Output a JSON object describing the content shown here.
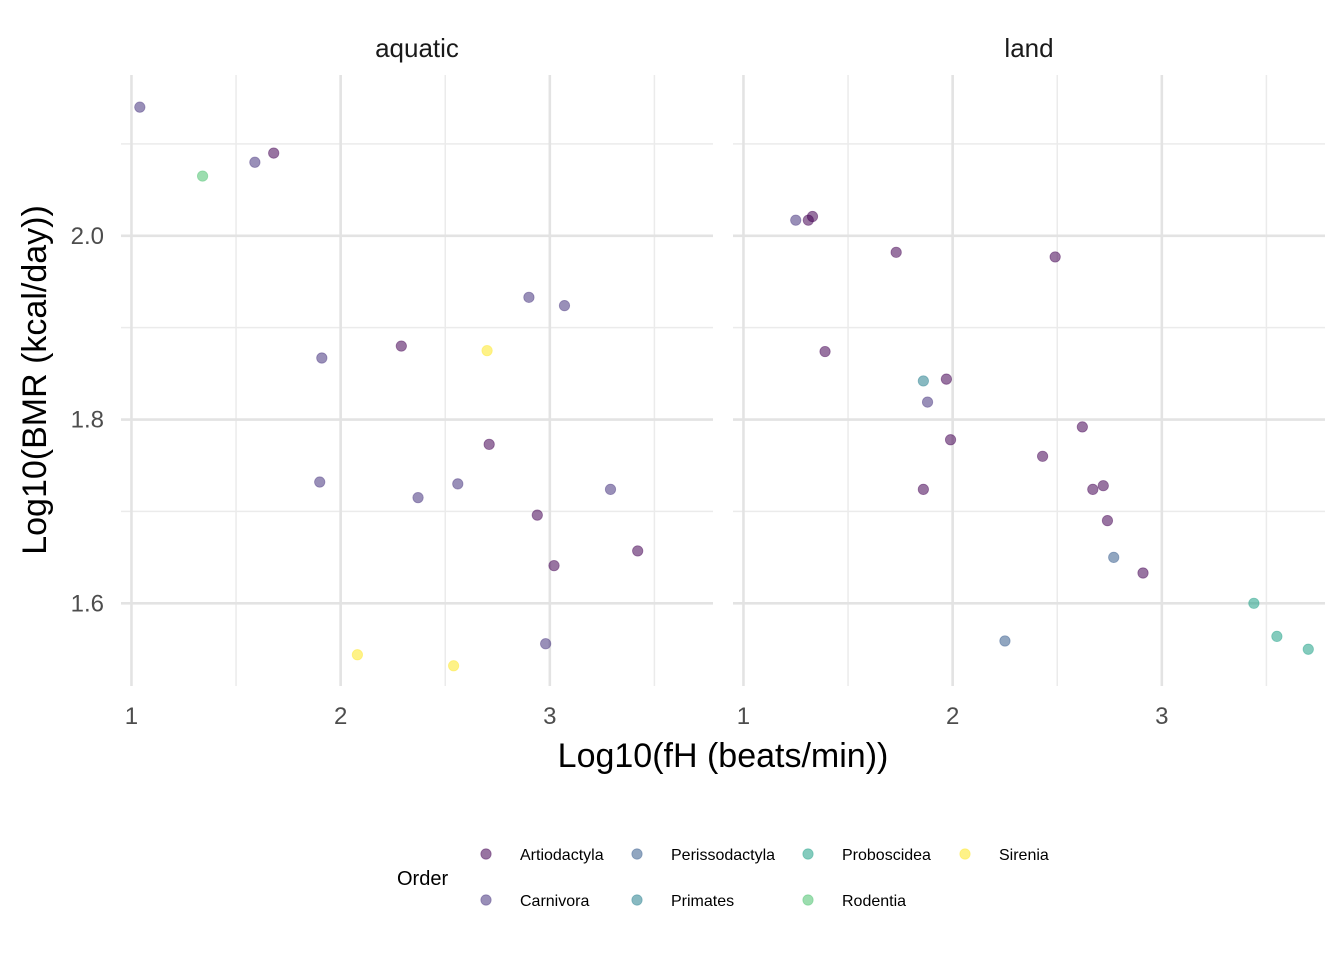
{
  "chart_data": {
    "type": "scatter",
    "xlabel": "Log10(fH (beats/min))",
    "ylabel": "Log10(BMR (kcal/day))",
    "xlim": [
      0.95,
      3.78
    ],
    "ylim": [
      1.51,
      2.175
    ],
    "x_ticks": [
      "1",
      "2",
      "3"
    ],
    "y_ticks": [
      "1.6",
      "1.8",
      "2.0"
    ],
    "grid": true,
    "facets": [
      "aquatic",
      "land"
    ],
    "legend": {
      "title": "Order",
      "placement": "bottom",
      "entries": [
        {
          "name": "Artiodactyla",
          "color": "#440154"
        },
        {
          "name": "Carnivora",
          "color": "#46337E"
        },
        {
          "name": "Perissodactyla",
          "color": "#365C8D"
        },
        {
          "name": "Primates",
          "color": "#277F8E"
        },
        {
          "name": "Proboscidea",
          "color": "#1FA187"
        },
        {
          "name": "Rodentia",
          "color": "#4AC16D"
        },
        {
          "name": "Sirenia",
          "color": "#FDE725"
        }
      ]
    },
    "series": [
      {
        "facet": "aquatic",
        "points": [
          {
            "x": 1.04,
            "y": 2.14,
            "order": "Carnivora"
          },
          {
            "x": 1.34,
            "y": 2.065,
            "order": "Rodentia"
          },
          {
            "x": 1.59,
            "y": 2.08,
            "order": "Carnivora"
          },
          {
            "x": 1.68,
            "y": 2.09,
            "order": "Artiodactyla"
          },
          {
            "x": 1.91,
            "y": 1.867,
            "order": "Carnivora"
          },
          {
            "x": 1.9,
            "y": 1.732,
            "order": "Carnivora"
          },
          {
            "x": 2.08,
            "y": 1.544,
            "order": "Sirenia"
          },
          {
            "x": 2.29,
            "y": 1.88,
            "order": "Artiodactyla"
          },
          {
            "x": 2.37,
            "y": 1.715,
            "order": "Carnivora"
          },
          {
            "x": 2.54,
            "y": 1.532,
            "order": "Sirenia"
          },
          {
            "x": 2.56,
            "y": 1.73,
            "order": "Carnivora"
          },
          {
            "x": 2.7,
            "y": 1.875,
            "order": "Sirenia"
          },
          {
            "x": 2.71,
            "y": 1.773,
            "order": "Artiodactyla"
          },
          {
            "x": 2.9,
            "y": 1.933,
            "order": "Carnivora"
          },
          {
            "x": 2.94,
            "y": 1.696,
            "order": "Artiodactyla"
          },
          {
            "x": 2.98,
            "y": 1.556,
            "order": "Carnivora"
          },
          {
            "x": 3.02,
            "y": 1.641,
            "order": "Artiodactyla"
          },
          {
            "x": 3.07,
            "y": 1.924,
            "order": "Carnivora"
          },
          {
            "x": 3.29,
            "y": 1.724,
            "order": "Carnivora"
          },
          {
            "x": 3.42,
            "y": 1.657,
            "order": "Artiodactyla"
          }
        ]
      },
      {
        "facet": "land",
        "points": [
          {
            "x": 1.25,
            "y": 2.017,
            "order": "Carnivora"
          },
          {
            "x": 1.31,
            "y": 2.017,
            "order": "Artiodactyla"
          },
          {
            "x": 1.33,
            "y": 2.021,
            "order": "Artiodactyla"
          },
          {
            "x": 1.39,
            "y": 1.874,
            "order": "Artiodactyla"
          },
          {
            "x": 1.73,
            "y": 1.982,
            "order": "Artiodactyla"
          },
          {
            "x": 1.86,
            "y": 1.842,
            "order": "Primates"
          },
          {
            "x": 1.86,
            "y": 1.724,
            "order": "Artiodactyla"
          },
          {
            "x": 1.88,
            "y": 1.819,
            "order": "Carnivora"
          },
          {
            "x": 1.97,
            "y": 1.844,
            "order": "Artiodactyla"
          },
          {
            "x": 1.99,
            "y": 1.778,
            "order": "Artiodactyla"
          },
          {
            "x": 2.25,
            "y": 1.559,
            "order": "Perissodactyla"
          },
          {
            "x": 2.43,
            "y": 1.76,
            "order": "Artiodactyla"
          },
          {
            "x": 2.49,
            "y": 1.977,
            "order": "Artiodactyla"
          },
          {
            "x": 2.62,
            "y": 1.792,
            "order": "Artiodactyla"
          },
          {
            "x": 2.67,
            "y": 1.724,
            "order": "Artiodactyla"
          },
          {
            "x": 2.72,
            "y": 1.728,
            "order": "Artiodactyla"
          },
          {
            "x": 2.74,
            "y": 1.69,
            "order": "Artiodactyla"
          },
          {
            "x": 2.77,
            "y": 1.65,
            "order": "Perissodactyla"
          },
          {
            "x": 2.91,
            "y": 1.633,
            "order": "Artiodactyla"
          },
          {
            "x": 3.44,
            "y": 1.6,
            "order": "Proboscidea"
          },
          {
            "x": 3.55,
            "y": 1.564,
            "order": "Proboscidea"
          },
          {
            "x": 3.7,
            "y": 1.55,
            "order": "Proboscidea"
          }
        ]
      }
    ]
  }
}
